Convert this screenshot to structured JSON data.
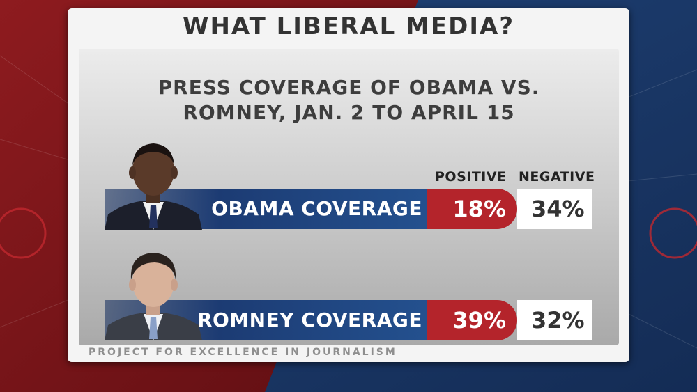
{
  "headline": "WHAT LIBERAL MEDIA?",
  "subtitle_line1": "PRESS COVERAGE OF OBAMA VS.",
  "subtitle_line2": "ROMNEY, JAN. 2 TO APRIL 15",
  "colors": {
    "positive": "#b4242b",
    "label_bar": "#1c3b73",
    "negative_cell": "#ffffff",
    "background_red": "#7a1418",
    "background_blue": "#1b3a6b"
  },
  "chart_data": {
    "type": "table",
    "title": "PRESS COVERAGE OF OBAMA VS. ROMNEY, JAN. 2 TO APRIL 15",
    "columns": [
      "POSITIVE",
      "NEGATIVE"
    ],
    "rows": [
      {
        "label": "OBAMA COVERAGE",
        "icon": "obama-photo",
        "positive": 18,
        "negative": 34,
        "positive_text": "18%",
        "negative_text": "34%"
      },
      {
        "label": "ROMNEY COVERAGE",
        "icon": "romney-photo",
        "positive": 39,
        "negative": 32,
        "positive_text": "39%",
        "negative_text": "32%"
      }
    ]
  },
  "source": "PROJECT FOR EXCELLENCE IN JOURNALISM"
}
